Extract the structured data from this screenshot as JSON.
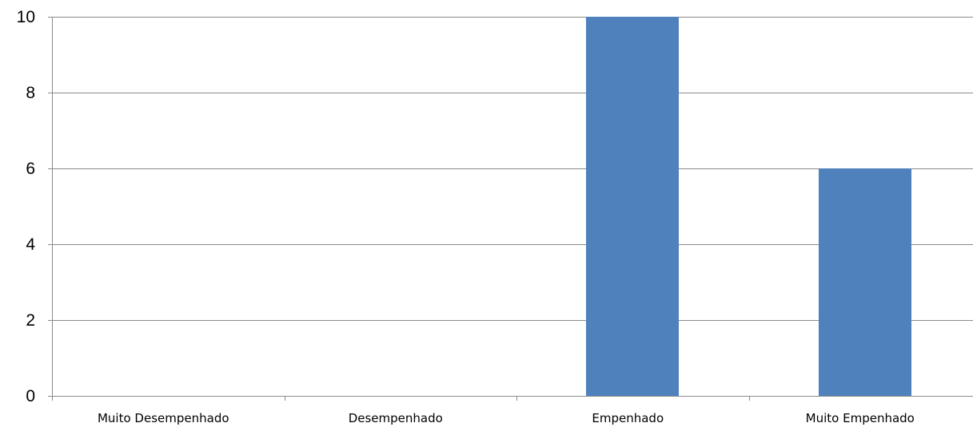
{
  "chart_data": {
    "type": "bar",
    "title": "",
    "xlabel": "",
    "ylabel": "",
    "categories": [
      "Muito Desempenhado",
      "Desempenhado",
      "Empenhado",
      "Muito Empenhado"
    ],
    "values": [
      0,
      0,
      10,
      6
    ],
    "ylim": [
      0,
      10
    ],
    "yticks": [
      "0",
      "2",
      "4",
      "6",
      "8",
      "10"
    ],
    "grid": true,
    "legend": "none",
    "bar_color": "#4f81bd",
    "grid_color": "#8c8c8c"
  }
}
